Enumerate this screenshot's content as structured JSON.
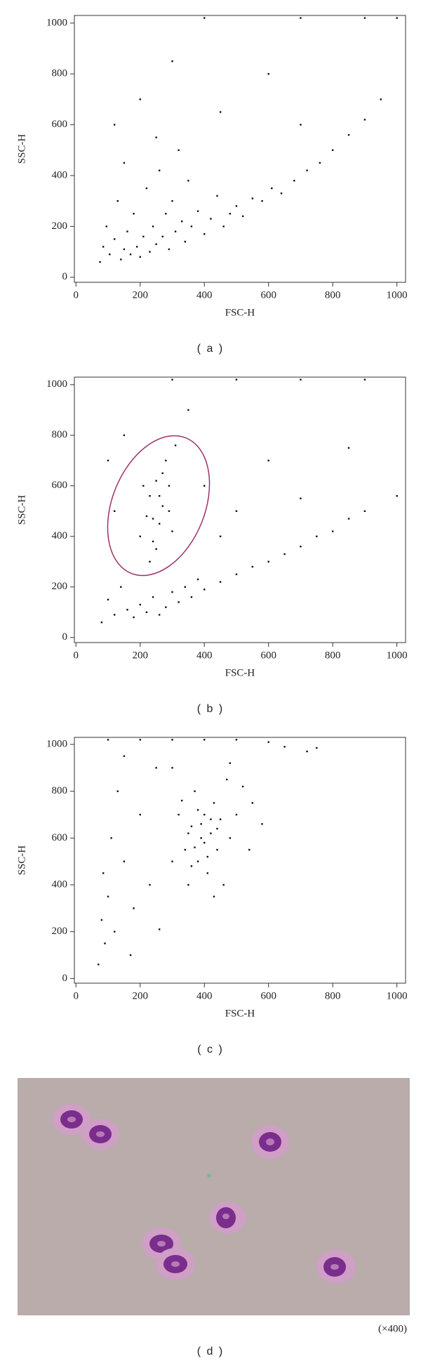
{
  "chart_data": [
    {
      "type": "scatter",
      "xlabel": "FSC-H",
      "ylabel": "SSC-H",
      "caption": "( a )",
      "color": "#111111",
      "xlim": [
        -5,
        1027
      ],
      "ylim": [
        -20,
        1030
      ],
      "xticks": [
        0,
        200,
        400,
        600,
        800,
        1000
      ],
      "yticks": [
        0,
        200,
        400,
        600,
        800,
        1000
      ],
      "x": [
        75,
        85,
        95,
        105,
        120,
        130,
        140,
        150,
        160,
        170,
        180,
        190,
        200,
        210,
        220,
        230,
        240,
        250,
        260,
        270,
        280,
        290,
        300,
        310,
        320,
        330,
        340,
        350,
        360,
        380,
        400,
        420,
        440,
        460,
        480,
        500,
        520,
        550,
        580,
        610,
        640,
        680,
        720,
        760,
        800,
        850,
        900,
        950,
        120,
        200,
        300,
        450,
        600,
        700,
        250,
        150,
        400,
        700,
        900,
        1000
      ],
      "y": [
        60,
        120,
        200,
        90,
        150,
        300,
        70,
        110,
        180,
        90,
        250,
        120,
        80,
        160,
        350,
        100,
        200,
        130,
        420,
        160,
        250,
        110,
        300,
        180,
        500,
        220,
        140,
        380,
        200,
        260,
        170,
        230,
        320,
        200,
        250,
        280,
        240,
        310,
        300,
        350,
        330,
        380,
        420,
        450,
        500,
        560,
        620,
        700,
        600,
        700,
        850,
        650,
        800,
        600,
        550,
        450,
        1020,
        1020,
        1020,
        1020
      ]
    },
    {
      "type": "scatter",
      "xlabel": "FSC-H",
      "ylabel": "SSC-H",
      "caption": "( b )",
      "color": "#111111",
      "xlim": [
        -5,
        1027
      ],
      "ylim": [
        -20,
        1030
      ],
      "xticks": [
        0,
        200,
        400,
        600,
        800,
        1000
      ],
      "yticks": [
        0,
        200,
        400,
        600,
        800,
        1000
      ],
      "x": [
        80,
        100,
        120,
        140,
        160,
        180,
        200,
        220,
        240,
        260,
        280,
        300,
        320,
        340,
        360,
        380,
        400,
        450,
        500,
        550,
        600,
        650,
        700,
        750,
        800,
        850,
        900,
        200,
        220,
        230,
        240,
        250,
        260,
        270,
        280,
        290,
        300,
        310,
        250,
        210,
        270,
        230,
        290,
        260,
        240,
        120,
        150,
        400,
        500,
        600,
        700,
        850,
        350,
        100,
        450,
        300,
        500,
        700,
        900,
        1000
      ],
      "y": [
        60,
        150,
        90,
        200,
        110,
        80,
        130,
        100,
        160,
        90,
        120,
        180,
        140,
        200,
        160,
        230,
        190,
        220,
        250,
        280,
        300,
        330,
        360,
        400,
        420,
        470,
        500,
        400,
        480,
        560,
        380,
        620,
        450,
        520,
        700,
        600,
        420,
        760,
        350,
        600,
        650,
        300,
        500,
        560,
        470,
        500,
        800,
        600,
        500,
        700,
        550,
        750,
        900,
        700,
        400,
        1020,
        1020,
        1020,
        1020,
        560
      ]
    },
    {
      "type": "scatter",
      "xlabel": "FSC-H",
      "ylabel": "SSC-H",
      "caption": "( c )",
      "color": "#111111",
      "xlim": [
        -5,
        1027
      ],
      "ylim": [
        -20,
        1030
      ],
      "xticks": [
        0,
        200,
        400,
        600,
        800,
        1000
      ],
      "yticks": [
        0,
        200,
        400,
        600,
        800,
        1000
      ],
      "x": [
        70,
        80,
        85,
        90,
        100,
        110,
        120,
        130,
        150,
        170,
        200,
        230,
        260,
        300,
        320,
        340,
        350,
        360,
        370,
        380,
        390,
        400,
        410,
        420,
        430,
        440,
        450,
        460,
        470,
        480,
        370,
        390,
        400,
        380,
        410,
        360,
        420,
        350,
        440,
        330,
        500,
        520,
        550,
        580,
        300,
        430,
        250,
        150,
        100,
        200,
        300,
        400,
        500,
        600,
        650,
        720,
        750,
        180,
        480,
        540
      ],
      "y": [
        60,
        250,
        450,
        150,
        350,
        600,
        200,
        800,
        500,
        100,
        700,
        400,
        210,
        500,
        700,
        550,
        400,
        650,
        800,
        500,
        600,
        700,
        450,
        620,
        750,
        550,
        680,
        400,
        850,
        600,
        560,
        660,
        580,
        720,
        520,
        480,
        680,
        620,
        640,
        760,
        700,
        820,
        750,
        660,
        900,
        350,
        900,
        950,
        1020,
        1020,
        1020,
        1020,
        1020,
        1010,
        990,
        970,
        985,
        300,
        920,
        550
      ]
    }
  ],
  "image_panel": {
    "magnification": "(×400)",
    "caption": "( d )"
  }
}
